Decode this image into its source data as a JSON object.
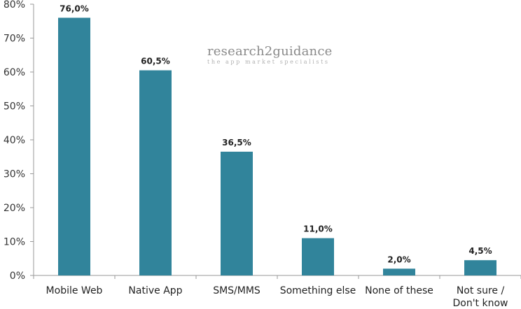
{
  "watermark": {
    "name": "research2guidance",
    "tagline": "the app market specialists"
  },
  "chart_data": {
    "type": "bar",
    "categories": [
      "Mobile Web",
      "Native App",
      "SMS/MMS",
      "Something else",
      "None of these",
      "Not sure / Don't know"
    ],
    "values": [
      76.0,
      60.5,
      36.5,
      11.0,
      2.0,
      4.5
    ],
    "data_labels": [
      "76,0%",
      "60,5%",
      "36,5%",
      "11,0%",
      "2,0%",
      "4,5%"
    ],
    "yticks": [
      "0%",
      "10%",
      "20%",
      "30%",
      "40%",
      "50%",
      "60%",
      "70%",
      "80%"
    ],
    "ylim": [
      0,
      80
    ],
    "grid": false,
    "legend": "none",
    "bar_color": "#31849b",
    "title": "",
    "xlabel": "",
    "ylabel": ""
  }
}
